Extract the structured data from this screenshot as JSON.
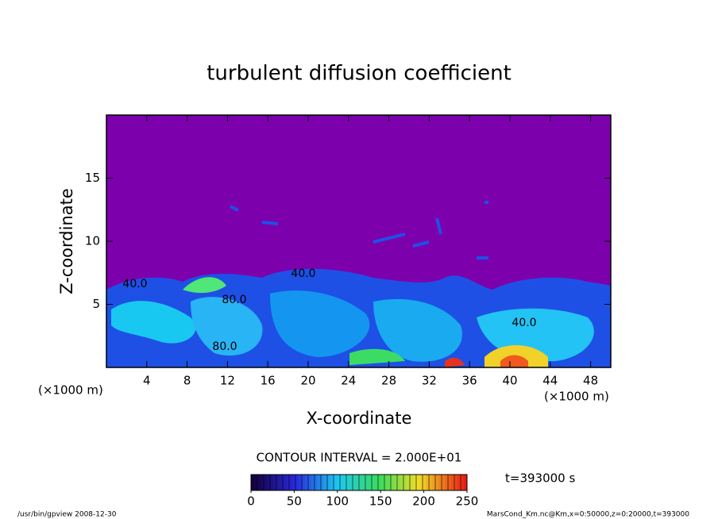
{
  "chart_data": {
    "type": "contour",
    "title": "turbulent diffusion coefficient",
    "x_label": "X-coordinate",
    "y_label": "Z-coordinate",
    "x_unit": "(×1000 m)",
    "xlim": [
      0,
      50
    ],
    "xticks": [
      4,
      8,
      12,
      16,
      20,
      24,
      28,
      32,
      36,
      40,
      44,
      48
    ],
    "ylim": [
      0,
      20
    ],
    "yticks": [
      5,
      10,
      15
    ],
    "contour_labels": [
      {
        "value": 40,
        "label": "40.0"
      },
      {
        "value": 80,
        "label": "80.0"
      },
      {
        "value": 80,
        "label": "80.0"
      },
      {
        "value": 40,
        "label": "40.0"
      },
      {
        "value": 40,
        "label": "40.0"
      }
    ],
    "contour_interval": "CONTOUR INTERVAL = 2.000E+01",
    "clim": [
      0,
      250
    ],
    "cticks": [
      0,
      50,
      100,
      150,
      200,
      250
    ],
    "time": "t=393000 s",
    "footer_left": "/usr/bin/gpview  2008-12-30",
    "footer_right": "MarsCond_Km.nc@Km,x=0:50000,z=0:20000,t=393000"
  }
}
